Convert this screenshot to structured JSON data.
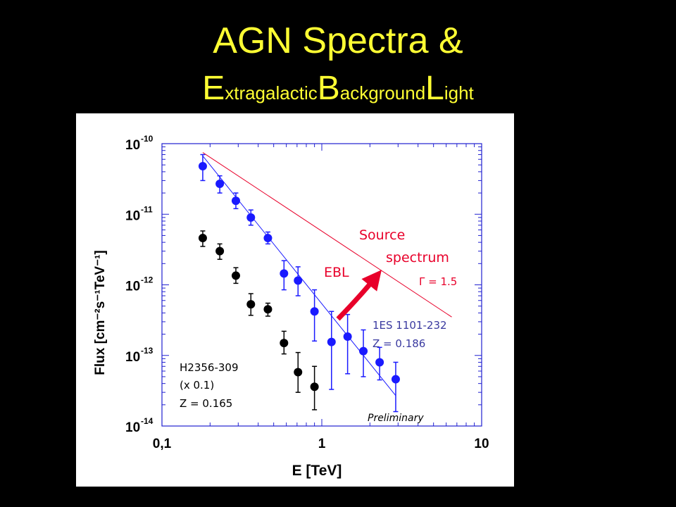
{
  "title": {
    "line1": "AGN Spectra &",
    "line2_parts": [
      {
        "big": "E",
        "small": "xtragalactic"
      },
      {
        "big": "B",
        "small": "ackground"
      },
      {
        "big": "L",
        "small": "ight"
      }
    ]
  },
  "colors": {
    "background": "#000000",
    "title": "#ffff33",
    "blue": "#1a1aff",
    "black": "#000000",
    "red": "#e8002a",
    "label_blue": "#3a3aa0"
  },
  "chart_data": {
    "type": "scatter",
    "xlabel": "E [TeV]",
    "ylabel": "Flux [cm⁻²s⁻¹TeV⁻¹]",
    "xscale": "log",
    "yscale": "log",
    "xlim": [
      0.1,
      10
    ],
    "ylim": [
      1e-14,
      1e-10
    ],
    "xticks": [
      "0,1",
      "1",
      "10"
    ],
    "yticks": [
      {
        "base": "10",
        "exp": "-14"
      },
      {
        "base": "10",
        "exp": "-13"
      },
      {
        "base": "10",
        "exp": "-12"
      },
      {
        "base": "10",
        "exp": "-11"
      },
      {
        "base": "10",
        "exp": "-10"
      }
    ],
    "series": [
      {
        "name": "1ES 1101-232",
        "color": "#1a1aff",
        "points": [
          {
            "x": 0.18,
            "y": 4.8e-11,
            "lo": 3e-11,
            "hi": 7e-11
          },
          {
            "x": 0.23,
            "y": 2.7e-11,
            "lo": 2e-11,
            "hi": 3.5e-11
          },
          {
            "x": 0.29,
            "y": 1.55e-11,
            "lo": 1.2e-11,
            "hi": 2e-11
          },
          {
            "x": 0.36,
            "y": 9e-12,
            "lo": 7e-12,
            "hi": 1.15e-11
          },
          {
            "x": 0.46,
            "y": 4.6e-12,
            "lo": 3.8e-12,
            "hi": 5.6e-12
          },
          {
            "x": 0.58,
            "y": 1.45e-12,
            "lo": 8.5e-13,
            "hi": 2.2e-12
          },
          {
            "x": 0.71,
            "y": 1.15e-12,
            "lo": 7e-13,
            "hi": 1.8e-12
          },
          {
            "x": 0.9,
            "y": 4.2e-13,
            "lo": 1.6e-13,
            "hi": 8.5e-13
          },
          {
            "x": 1.15,
            "y": 1.55e-13,
            "lo": 3.3e-14,
            "hi": 4.2e-13
          },
          {
            "x": 1.45,
            "y": 1.85e-13,
            "lo": 5.5e-14,
            "hi": 3.8e-13
          },
          {
            "x": 1.82,
            "y": 1.15e-13,
            "lo": 5e-14,
            "hi": 2.3e-13
          },
          {
            "x": 2.3,
            "y": 8e-14,
            "lo": 4.5e-14,
            "hi": 1.3e-13
          },
          {
            "x": 2.9,
            "y": 4.6e-14,
            "lo": 1.6e-14,
            "hi": 8e-14
          }
        ],
        "fit": {
          "x": [
            0.18,
            2.9
          ],
          "y": [
            6.7e-11,
            2.7e-14
          ]
        }
      },
      {
        "name": "H2356-309",
        "color": "#000000",
        "points": [
          {
            "x": 0.18,
            "y": 4.6e-12,
            "lo": 3.5e-12,
            "hi": 5.8e-12
          },
          {
            "x": 0.23,
            "y": 3e-12,
            "lo": 2.3e-12,
            "hi": 3.8e-12
          },
          {
            "x": 0.29,
            "y": 1.35e-12,
            "lo": 1.05e-12,
            "hi": 1.75e-12
          },
          {
            "x": 0.36,
            "y": 5.3e-13,
            "lo": 3.7e-13,
            "hi": 7.5e-13
          },
          {
            "x": 0.46,
            "y": 4.5e-13,
            "lo": 3.6e-13,
            "hi": 5.5e-13
          },
          {
            "x": 0.58,
            "y": 1.5e-13,
            "lo": 1.05e-13,
            "hi": 2.2e-13
          },
          {
            "x": 0.71,
            "y": 5.8e-14,
            "lo": 3e-14,
            "hi": 1.1e-13
          },
          {
            "x": 0.9,
            "y": 3.6e-14,
            "lo": 1.7e-14,
            "hi": 7e-14
          }
        ]
      }
    ],
    "source_spectrum": {
      "x": [
        0.18,
        6.5
      ],
      "y": [
        7.5e-11,
        3.5e-13
      ],
      "color": "#e8002a"
    },
    "annotations": {
      "source_line1": "Source",
      "source_line2": "spectrum",
      "gamma": "Γ = 1.5",
      "ebl": "EBL",
      "blue_name": "1ES 1101-232",
      "blue_z": "Z = 0.186",
      "black_name": "H2356-309",
      "black_scale": "(x 0.1)",
      "black_z": "Z = 0.165",
      "preliminary": "Preliminary"
    }
  }
}
